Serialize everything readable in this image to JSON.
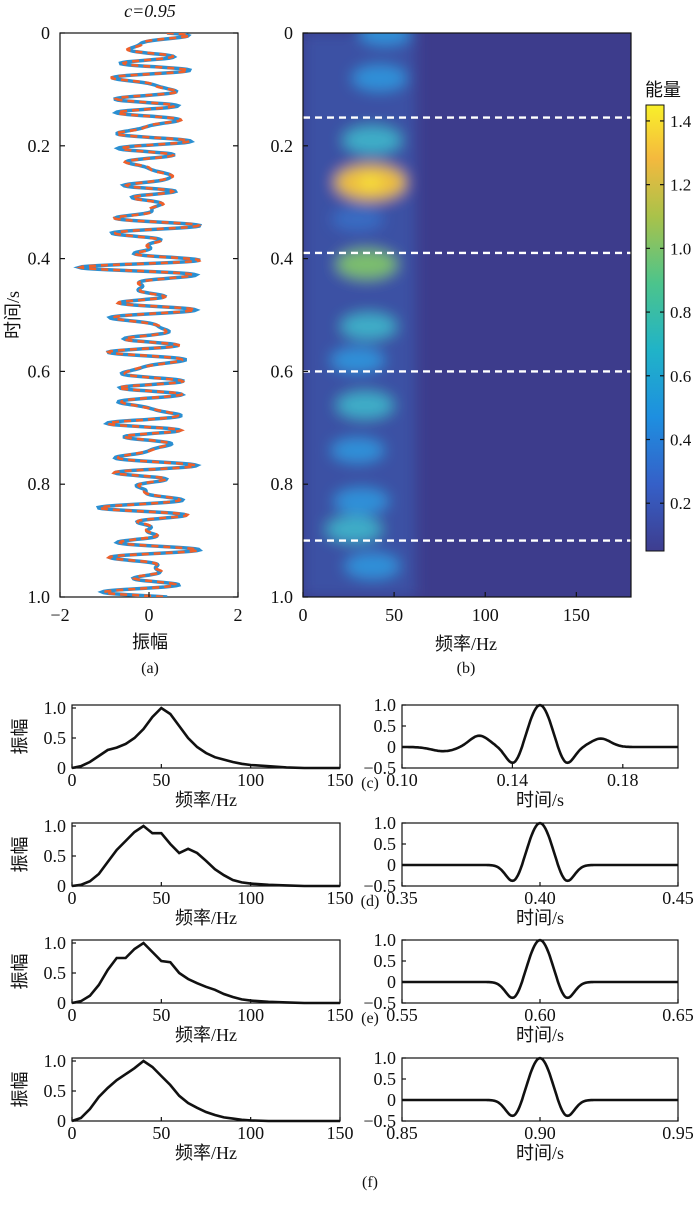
{
  "panel_a": {
    "title": "c=0.95",
    "ylabel": "时间/s",
    "xlabel": "振幅",
    "caption": "(a)",
    "y_ticks": [
      "0",
      "0.2",
      "0.4",
      "0.6",
      "0.8",
      "1.0"
    ],
    "x_ticks": [
      "−2",
      "0",
      "2"
    ]
  },
  "panel_b": {
    "xlabel": "频率/Hz",
    "caption": "(b)",
    "colorbar_title": "能量",
    "y_ticks": [
      "0",
      "0.2",
      "0.4",
      "0.6",
      "0.8",
      "1.0"
    ],
    "x_ticks": [
      "0",
      "50",
      "100",
      "150"
    ],
    "cb_ticks": [
      "0.2",
      "0.4",
      "0.6",
      "0.8",
      "1.0",
      "1.2",
      "1.4"
    ]
  },
  "small": {
    "ylabel": "振幅",
    "freq_xlabel": "频率/Hz",
    "time_xlabel": "时间/s",
    "freq_x_ticks": [
      "0",
      "50",
      "100",
      "150"
    ],
    "y_ticks": [
      "1.0",
      "0.5",
      "0"
    ],
    "time_y_ticks": [
      "1.0",
      "0.5",
      "0",
      "−0.5"
    ],
    "rows": [
      {
        "caption": "(c)",
        "time_ticks": [
          "0.10",
          "0.14",
          "0.18"
        ]
      },
      {
        "caption": "(d)",
        "time_ticks": [
          "0.35",
          "0.40",
          "0.45"
        ]
      },
      {
        "caption": "(e)",
        "time_ticks": [
          "0.55",
          "0.60",
          "0.65"
        ]
      },
      {
        "caption": "(f)",
        "time_ticks": [
          "0.85",
          "0.90",
          "0.95"
        ]
      }
    ]
  },
  "chart_data": [
    {
      "type": "line",
      "panel": "a",
      "title": "c=0.95",
      "xlabel": "振幅",
      "ylabel": "时间/s",
      "xlim": [
        -2,
        2
      ],
      "ylim": [
        0,
        1.0
      ],
      "y_inverted": true,
      "series_colors": [
        "#2b8fd1",
        "#f0602a"
      ],
      "note_trace": "seismic trace, amplitude vs time; two overlapping series (blue, orange dashed)"
    },
    {
      "type": "heatmap",
      "panel": "b",
      "xlabel": "频率/Hz",
      "xlim": [
        0,
        180
      ],
      "ylim": [
        0,
        1.0
      ],
      "y_inverted": true,
      "colorbar": {
        "title": "能量",
        "min": 0.05,
        "max": 1.45,
        "colormap": "parula"
      },
      "energy_blobs": [
        {
          "time": 0.0,
          "freq": 45,
          "energy": 0.5
        },
        {
          "time": 0.08,
          "freq": 42,
          "energy": 0.6
        },
        {
          "time": 0.19,
          "freq": 38,
          "energy": 0.8
        },
        {
          "time": 0.265,
          "freq": 37,
          "energy": 1.42
        },
        {
          "time": 0.33,
          "freq": 30,
          "energy": 0.45
        },
        {
          "time": 0.41,
          "freq": 35,
          "energy": 0.9
        },
        {
          "time": 0.52,
          "freq": 36,
          "energy": 0.65
        },
        {
          "time": 0.58,
          "freq": 30,
          "energy": 0.55
        },
        {
          "time": 0.66,
          "freq": 34,
          "energy": 0.7
        },
        {
          "time": 0.74,
          "freq": 30,
          "energy": 0.5
        },
        {
          "time": 0.83,
          "freq": 32,
          "energy": 0.6
        },
        {
          "time": 0.88,
          "freq": 28,
          "energy": 0.65
        },
        {
          "time": 0.945,
          "freq": 38,
          "energy": 0.6
        }
      ],
      "dashed_lines_time": [
        0.15,
        0.39,
        0.6,
        0.9
      ]
    },
    {
      "type": "line",
      "panel": "c-f spectra",
      "xlabel": "频率/Hz",
      "ylabel": "振幅",
      "xlim": [
        0,
        150
      ],
      "ylim": [
        0,
        1.05
      ],
      "series": [
        {
          "x": [
            0,
            5,
            10,
            15,
            20,
            25,
            30,
            35,
            40,
            45,
            50,
            55,
            60,
            65,
            70,
            75,
            80,
            85,
            90,
            95,
            100,
            110,
            120,
            130,
            150
          ],
          "values": [
            0,
            0.03,
            0.1,
            0.2,
            0.3,
            0.34,
            0.4,
            0.5,
            0.65,
            0.85,
            1.0,
            0.9,
            0.7,
            0.5,
            0.35,
            0.25,
            0.18,
            0.14,
            0.1,
            0.07,
            0.05,
            0.03,
            0.01,
            0,
            0
          ]
        },
        {
          "x": [
            0,
            5,
            10,
            15,
            20,
            25,
            30,
            35,
            40,
            45,
            50,
            55,
            60,
            65,
            70,
            75,
            80,
            85,
            90,
            95,
            100,
            110,
            120,
            130,
            150
          ],
          "values": [
            0,
            0.02,
            0.08,
            0.2,
            0.4,
            0.6,
            0.75,
            0.9,
            1.0,
            0.88,
            0.88,
            0.7,
            0.55,
            0.62,
            0.55,
            0.42,
            0.28,
            0.18,
            0.1,
            0.06,
            0.04,
            0.02,
            0.01,
            0,
            0
          ]
        },
        {
          "x": [
            0,
            5,
            10,
            15,
            20,
            25,
            30,
            35,
            40,
            45,
            50,
            55,
            60,
            65,
            70,
            75,
            80,
            85,
            90,
            95,
            100,
            110,
            120,
            130,
            150
          ],
          "values": [
            0,
            0.03,
            0.12,
            0.3,
            0.55,
            0.75,
            0.75,
            0.9,
            1.0,
            0.85,
            0.7,
            0.68,
            0.5,
            0.4,
            0.33,
            0.27,
            0.22,
            0.15,
            0.1,
            0.06,
            0.04,
            0.02,
            0.01,
            0,
            0
          ]
        },
        {
          "x": [
            0,
            5,
            10,
            15,
            20,
            25,
            30,
            35,
            40,
            45,
            50,
            55,
            60,
            65,
            70,
            75,
            80,
            85,
            90,
            95,
            100,
            110,
            120,
            130,
            150
          ],
          "values": [
            0,
            0.05,
            0.2,
            0.4,
            0.55,
            0.68,
            0.78,
            0.88,
            1.0,
            0.9,
            0.75,
            0.6,
            0.42,
            0.3,
            0.22,
            0.15,
            0.1,
            0.06,
            0.04,
            0.02,
            0.01,
            0,
            0,
            0,
            0
          ]
        }
      ]
    },
    {
      "type": "line",
      "panel": "c-f wavelets",
      "xlabel": "时间/s",
      "ylim": [
        -0.5,
        1.0
      ],
      "windows": [
        {
          "center": 0.15,
          "xlim": [
            0.1,
            0.2
          ]
        },
        {
          "center": 0.4,
          "xlim": [
            0.35,
            0.45
          ]
        },
        {
          "center": 0.6,
          "xlim": [
            0.55,
            0.65
          ]
        },
        {
          "center": 0.9,
          "xlim": [
            0.85,
            0.95
          ]
        }
      ]
    }
  ]
}
